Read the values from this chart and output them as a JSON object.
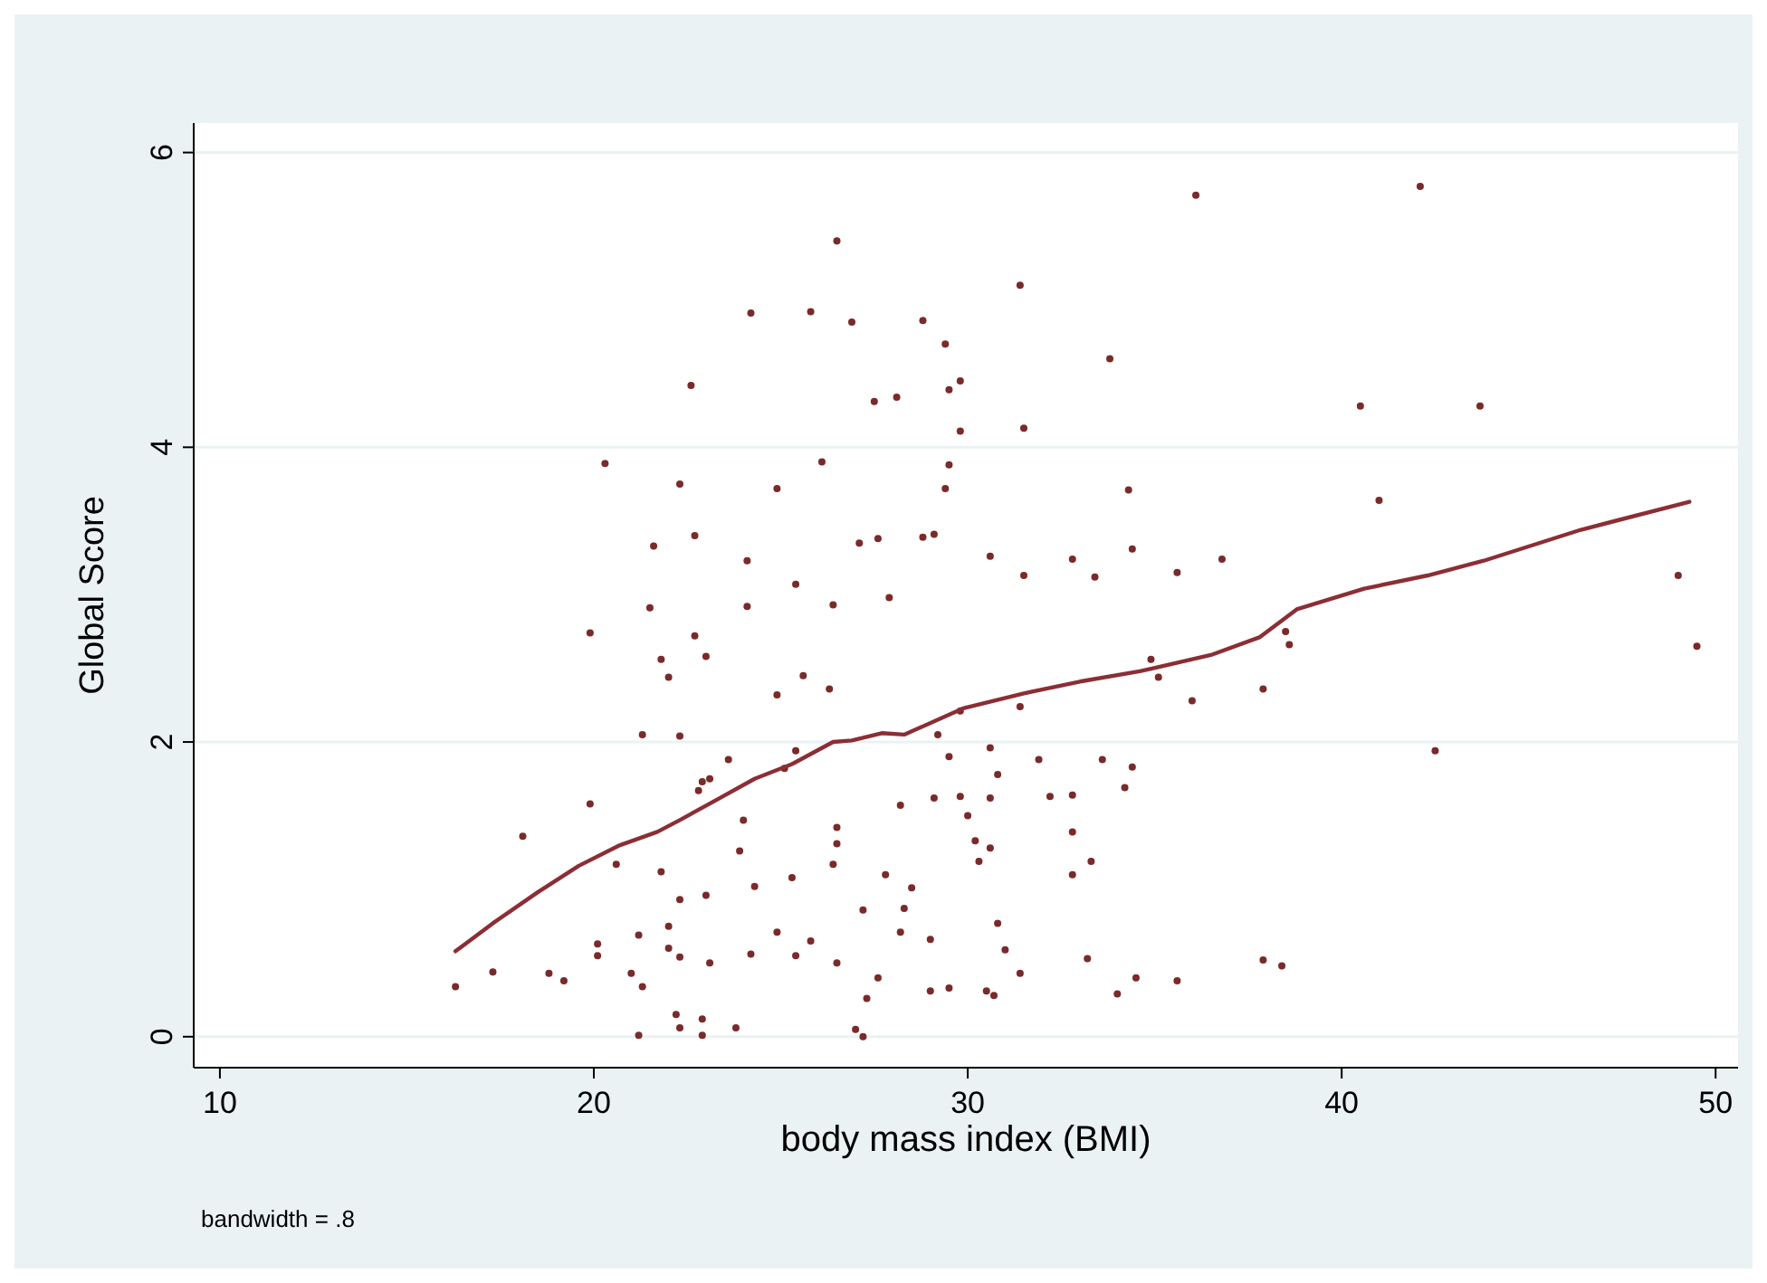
{
  "chart_data": {
    "type": "scatter",
    "xlabel": "body mass index (BMI)",
    "ylabel": "Global Score",
    "annotations": [
      "bandwidth = .8"
    ],
    "xlim": [
      9.3,
      50.6
    ],
    "ylim": [
      -0.21,
      6.2
    ],
    "xticks": [
      10,
      20,
      30,
      40,
      50
    ],
    "yticks": [
      0,
      2,
      4,
      6
    ],
    "grid": "y",
    "marker": "circle",
    "series": [
      {
        "color": "#7a2a2a",
        "x": [
          26.5,
          24.2,
          25.8,
          26.9,
          28.8,
          29.4,
          31.4,
          36.1,
          42.1,
          22.6,
          29.8,
          29.5,
          27.5,
          28.1,
          29.8,
          31.5,
          33.8,
          40.5,
          43.7,
          20.3,
          22.3,
          24.9,
          26.1,
          29.5,
          29.4,
          34.3,
          41.0,
          21.6,
          22.7,
          24.1,
          25.4,
          27.1,
          27.6,
          28.8,
          29.1,
          30.6,
          32.8,
          34.4,
          31.5,
          33.4,
          35.6,
          36.8,
          49.0,
          27.9,
          26.4,
          24.1,
          21.5,
          19.9,
          22.7,
          23.0,
          21.8,
          22.0,
          24.9,
          25.6,
          26.3,
          29.8,
          31.4,
          34.9,
          35.1,
          37.9,
          38.5,
          38.6,
          36.0,
          49.5,
          21.3,
          22.3,
          23.6,
          23.1,
          22.9,
          22.8,
          25.4,
          25.1,
          19.9,
          18.1,
          20.6,
          24.0,
          26.5,
          26.5,
          26.4,
          27.8,
          28.5,
          28.3,
          29.1,
          29.8,
          30.0,
          30.2,
          30.3,
          30.6,
          30.8,
          32.2,
          32.8,
          32.8,
          32.8,
          33.3,
          33.6,
          34.2,
          34.4,
          31.9,
          30.6,
          29.5,
          29.2,
          28.2,
          30.6,
          21.8,
          23.9,
          24.3,
          23.0,
          25.3,
          22.3,
          22.0,
          21.2,
          20.1,
          20.1,
          21.0,
          22.0,
          22.3,
          23.1,
          24.2,
          24.9,
          25.4,
          25.8,
          26.5,
          27.2,
          27.6,
          27.3,
          28.2,
          29.0,
          29.0,
          29.5,
          30.8,
          31.0,
          31.4,
          30.5,
          30.7,
          33.2,
          34.5,
          35.6,
          34.0,
          37.9,
          38.4,
          16.3,
          17.3,
          18.8,
          19.2,
          21.3,
          21.2,
          22.9,
          22.2,
          22.3,
          22.9,
          23.8,
          27.2,
          27.0,
          42.5
        ],
        "values": [
          5.4,
          4.91,
          4.92,
          4.85,
          4.86,
          4.7,
          5.1,
          5.71,
          5.77,
          4.42,
          4.45,
          4.39,
          4.31,
          4.34,
          4.11,
          4.13,
          4.6,
          4.28,
          4.28,
          3.89,
          3.75,
          3.72,
          3.9,
          3.88,
          3.72,
          3.71,
          3.64,
          3.33,
          3.4,
          3.23,
          3.07,
          3.35,
          3.38,
          3.39,
          3.41,
          3.26,
          3.24,
          3.31,
          3.13,
          3.12,
          3.15,
          3.24,
          3.13,
          2.98,
          2.93,
          2.92,
          2.91,
          2.74,
          2.72,
          2.58,
          2.56,
          2.44,
          2.32,
          2.45,
          2.36,
          2.21,
          2.24,
          2.56,
          2.44,
          2.36,
          2.75,
          2.66,
          2.28,
          2.65,
          2.05,
          2.04,
          1.88,
          1.75,
          1.73,
          1.67,
          1.94,
          1.82,
          1.58,
          1.36,
          1.17,
          1.47,
          1.42,
          1.31,
          1.17,
          1.1,
          1.01,
          0.87,
          1.62,
          1.63,
          1.5,
          1.33,
          1.19,
          1.62,
          1.78,
          1.63,
          1.64,
          1.39,
          1.1,
          1.19,
          1.88,
          1.69,
          1.83,
          1.88,
          1.96,
          1.9,
          2.05,
          1.57,
          1.28,
          1.12,
          1.26,
          1.02,
          0.96,
          1.08,
          0.93,
          0.75,
          0.69,
          0.63,
          0.55,
          0.43,
          0.6,
          0.54,
          0.5,
          0.56,
          0.71,
          0.55,
          0.65,
          0.5,
          0.86,
          0.4,
          0.26,
          0.71,
          0.66,
          0.31,
          0.33,
          0.77,
          0.59,
          0.43,
          0.31,
          0.28,
          0.53,
          0.4,
          0.38,
          0.29,
          0.52,
          0.48,
          0.34,
          0.44,
          0.43,
          0.38,
          0.34,
          0.01,
          0.12,
          0.15,
          0.06,
          0.01,
          0.06,
          0.0,
          0.05,
          1.94
        ]
      },
      {
        "type": "line",
        "color": "#8b2e35",
        "marker": "none",
        "x": [
          16.3,
          17.3,
          18.5,
          19.6,
          20.7,
          21.7,
          22.3,
          23.3,
          24.3,
          25.3,
          26.4,
          26.9,
          27.7,
          28.3,
          29.9,
          31.5,
          33.0,
          34.6,
          36.5,
          37.8,
          38.8,
          40.6,
          42.3,
          43.8,
          46.4,
          49.3
        ],
        "values": [
          0.58,
          0.77,
          0.98,
          1.16,
          1.3,
          1.39,
          1.47,
          1.61,
          1.75,
          1.85,
          2.0,
          2.01,
          2.06,
          2.05,
          2.23,
          2.33,
          2.41,
          2.48,
          2.59,
          2.71,
          2.9,
          3.04,
          3.13,
          3.23,
          3.44,
          3.63
        ]
      }
    ]
  }
}
